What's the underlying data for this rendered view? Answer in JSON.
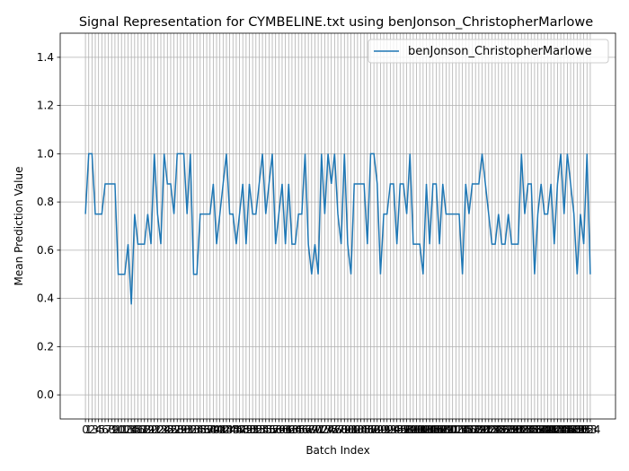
{
  "chart_data": {
    "type": "line",
    "title": "Signal Representation for CYMBELINE.txt using benJonson_ChristopherMarlowe",
    "x_label": "Batch Index",
    "y_label": "Mean Prediction Value",
    "x": [
      0,
      1,
      2,
      3,
      4,
      5,
      6,
      7,
      8,
      9,
      10,
      11,
      12,
      13,
      14,
      15,
      16,
      17,
      18,
      19,
      20,
      21,
      22,
      23,
      24,
      25,
      26,
      27,
      28,
      29,
      30,
      31,
      32,
      33,
      34,
      35,
      36,
      37,
      38,
      39,
      40,
      41,
      42,
      43,
      44,
      45,
      46,
      47,
      48,
      49,
      50,
      51,
      52,
      53,
      54,
      55,
      56,
      57,
      58,
      59,
      60,
      61,
      62,
      63,
      64,
      65,
      66,
      67,
      68,
      69,
      70,
      71,
      72,
      73,
      74,
      75,
      76,
      77,
      78,
      79,
      80,
      81,
      82,
      83,
      84,
      85,
      86,
      87,
      88,
      89,
      90,
      91,
      92,
      93,
      94,
      95,
      96,
      97,
      98,
      99,
      100,
      101,
      102,
      103,
      104,
      105,
      106,
      107,
      108,
      109,
      110,
      111,
      112,
      113,
      114,
      115,
      116,
      117,
      118,
      119,
      120,
      121,
      122,
      123,
      124,
      125,
      126,
      127,
      128,
      129,
      130,
      131,
      132,
      133,
      134,
      135,
      136,
      137,
      138,
      139,
      140,
      141,
      142,
      143,
      144,
      145,
      146,
      147,
      148,
      149,
      150,
      151,
      152,
      153,
      154
    ],
    "series": [
      {
        "name": "benJonson_ChristopherMarlowe",
        "color": "#1f77b4",
        "values": [
          0.75,
          1,
          1,
          0.75,
          0.75,
          0.75,
          0.875,
          0.875,
          0.875,
          0.875,
          0.5,
          0.5,
          0.5,
          0.625,
          0.375,
          0.75,
          0.625,
          0.625,
          0.625,
          0.75,
          0.625,
          1,
          0.75,
          0.625,
          1,
          0.875,
          0.875,
          0.75,
          1,
          1,
          1,
          0.75,
          1,
          0.5,
          0.5,
          0.75,
          0.75,
          0.75,
          0.75,
          0.875,
          0.625,
          0.75,
          0.875,
          1,
          0.75,
          0.75,
          0.625,
          0.75,
          0.875,
          0.625,
          0.875,
          0.75,
          0.75,
          0.875,
          1,
          0.75,
          0.875,
          1,
          0.625,
          0.75,
          0.875,
          0.625,
          0.875,
          0.625,
          0.625,
          0.75,
          0.75,
          1,
          0.625,
          0.5,
          0.625,
          0.5,
          1,
          0.75,
          1,
          0.875,
          1,
          0.75,
          0.625,
          1,
          0.625,
          0.5,
          0.875,
          0.875,
          0.875,
          0.875,
          0.625,
          1,
          1,
          0.875,
          0.5,
          0.75,
          0.75,
          0.875,
          0.875,
          0.625,
          0.875,
          0.875,
          0.75,
          1,
          0.625,
          0.625,
          0.625,
          0.5,
          0.875,
          0.625,
          0.875,
          0.875,
          0.625,
          0.875,
          0.75,
          0.75,
          0.75,
          0.75,
          0.75,
          0.5,
          0.875,
          0.75,
          0.875,
          0.875,
          0.875,
          1,
          0.875,
          0.75,
          0.625,
          0.625,
          0.75,
          0.625,
          0.625,
          0.75,
          0.625,
          0.625,
          0.625,
          1,
          0.75,
          0.875,
          0.875,
          0.5,
          0.75,
          0.875,
          0.75,
          0.75,
          0.875,
          0.625,
          0.875,
          1,
          0.75,
          1,
          0.875,
          0.75,
          0.5,
          0.75,
          0.625,
          1,
          0.5
        ]
      }
    ],
    "xlim": [
      -7.7,
      161.7
    ],
    "xticks": [
      0,
      1,
      2,
      3,
      4,
      5,
      6,
      7,
      8,
      9,
      10,
      11,
      12,
      13,
      14,
      15,
      16,
      17,
      18,
      19,
      20,
      21,
      22,
      23,
      24,
      25,
      26,
      27,
      28,
      29,
      30,
      31,
      32,
      33,
      34,
      35,
      36,
      37,
      38,
      39,
      40,
      41,
      42,
      43,
      44,
      45,
      46,
      47,
      48,
      49,
      50,
      51,
      52,
      53,
      54,
      55,
      56,
      57,
      58,
      59,
      60,
      61,
      62,
      63,
      64,
      65,
      66,
      67,
      68,
      69,
      70,
      71,
      72,
      73,
      74,
      75,
      76,
      77,
      78,
      79,
      80,
      81,
      82,
      83,
      84,
      85,
      86,
      87,
      88,
      89,
      90,
      91,
      92,
      93,
      94,
      95,
      96,
      97,
      98,
      99,
      100,
      101,
      102,
      103,
      104,
      105,
      106,
      107,
      108,
      109,
      110,
      111,
      112,
      113,
      114,
      115,
      116,
      117,
      118,
      119,
      120,
      121,
      122,
      123,
      124,
      125,
      126,
      127,
      128,
      129,
      130,
      131,
      132,
      133,
      134,
      135,
      136,
      137,
      138,
      139,
      140,
      141,
      142,
      143,
      144,
      145,
      146,
      147,
      148,
      149,
      150,
      151,
      152,
      153,
      154
    ],
    "ylim": [
      -0.1,
      1.5
    ],
    "yticks": [
      {
        "value": 0,
        "label": "0.0"
      },
      {
        "value": 0.2,
        "label": "0.2"
      },
      {
        "value": 0.4,
        "label": "0.4"
      },
      {
        "value": 0.6,
        "label": "0.6"
      },
      {
        "value": 0.8,
        "label": "0.8"
      },
      {
        "value": 1,
        "label": "1.0"
      },
      {
        "value": 1.2,
        "label": "1.2"
      },
      {
        "value": 1.4,
        "label": "1.4"
      }
    ],
    "grid": true,
    "legend": "upper right"
  }
}
